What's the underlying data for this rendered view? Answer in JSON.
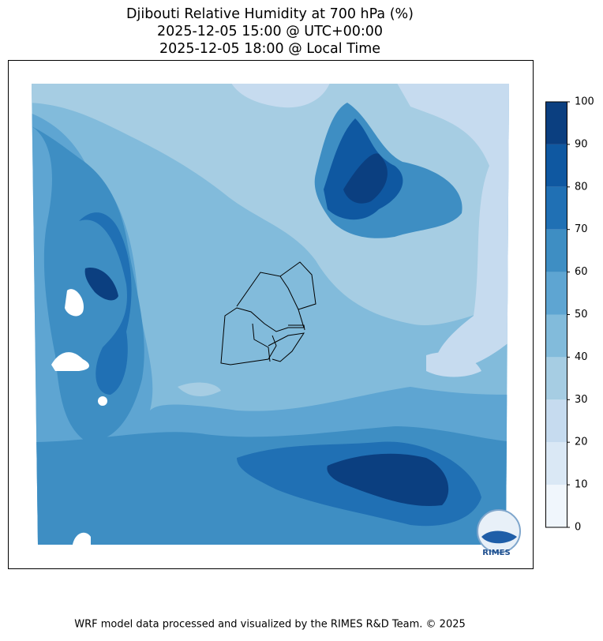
{
  "title": [
    "Djibouti Relative Humidity at 700 hPa (%)",
    "2025-12-05 15:00 @ UTC+00:00",
    "2025-12-05 18:00 @ Local Time"
  ],
  "colorbar": {
    "ticks": [
      0,
      10,
      20,
      30,
      40,
      50,
      60,
      70,
      80,
      90,
      100
    ],
    "colors": [
      "#f0f6fc",
      "#dae8f5",
      "#c6dbef",
      "#a6cde3",
      "#82bbdb",
      "#5ea5d2",
      "#3e8ec3",
      "#2070b4",
      "#0f58a1",
      "#0b3f80"
    ]
  },
  "logo": {
    "label": "RIMES"
  },
  "footer": "WRF model data processed and visualized by the RIMES R&D Team. © 2025"
}
